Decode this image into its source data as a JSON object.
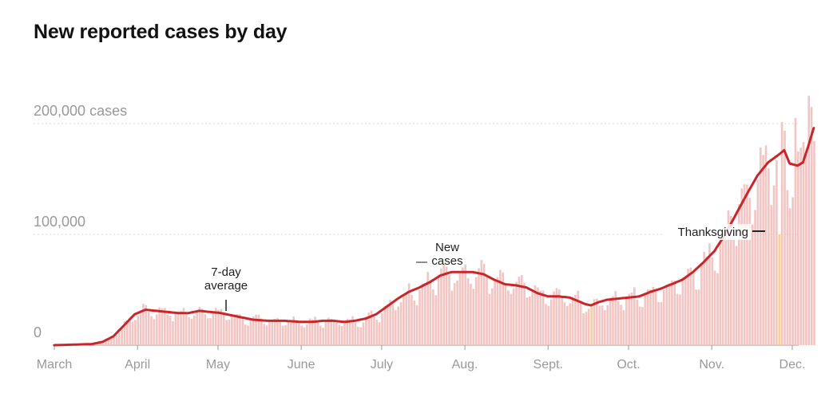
{
  "chart_data": {
    "type": "bar",
    "title": "New reported cases by day",
    "y_ticks": [
      {
        "value": 0,
        "label": "0"
      },
      {
        "value": 100000,
        "label": "100,000"
      },
      {
        "value": 200000,
        "label": "200,000 cases"
      }
    ],
    "ylim": [
      0,
      200000
    ],
    "x_ticks": [
      {
        "day": 0,
        "label": "March"
      },
      {
        "day": 31,
        "label": "April"
      },
      {
        "day": 61,
        "label": "May"
      },
      {
        "day": 92,
        "label": "June"
      },
      {
        "day": 122,
        "label": "July"
      },
      {
        "day": 153,
        "label": "Aug."
      },
      {
        "day": 184,
        "label": "Sept."
      },
      {
        "day": 214,
        "label": "Oct."
      },
      {
        "day": 245,
        "label": "Nov."
      },
      {
        "day": 275,
        "label": "Dec."
      }
    ],
    "series": [
      {
        "name": "New cases",
        "style": "daily bars",
        "color": "#f2c4c2"
      },
      {
        "name": "7-day average",
        "style": "line",
        "color": "#c9252b"
      }
    ],
    "avg_anchors": [
      [
        0,
        0
      ],
      [
        14,
        1000
      ],
      [
        18,
        3000
      ],
      [
        22,
        8000
      ],
      [
        26,
        18000
      ],
      [
        30,
        28000
      ],
      [
        34,
        32000
      ],
      [
        38,
        31000
      ],
      [
        42,
        30000
      ],
      [
        46,
        29000
      ],
      [
        50,
        29000
      ],
      [
        54,
        31000
      ],
      [
        58,
        30000
      ],
      [
        62,
        29000
      ],
      [
        66,
        27000
      ],
      [
        70,
        25000
      ],
      [
        74,
        23000
      ],
      [
        80,
        22000
      ],
      [
        86,
        22000
      ],
      [
        92,
        21000
      ],
      [
        96,
        21000
      ],
      [
        100,
        22000
      ],
      [
        104,
        22000
      ],
      [
        108,
        21000
      ],
      [
        112,
        22000
      ],
      [
        116,
        24000
      ],
      [
        120,
        28000
      ],
      [
        124,
        35000
      ],
      [
        128,
        42000
      ],
      [
        132,
        48000
      ],
      [
        136,
        52000
      ],
      [
        140,
        57000
      ],
      [
        144,
        63000
      ],
      [
        148,
        66000
      ],
      [
        152,
        66000
      ],
      [
        156,
        66000
      ],
      [
        160,
        64000
      ],
      [
        164,
        59000
      ],
      [
        168,
        55000
      ],
      [
        172,
        54000
      ],
      [
        176,
        52000
      ],
      [
        180,
        47000
      ],
      [
        184,
        44000
      ],
      [
        188,
        44000
      ],
      [
        192,
        43000
      ],
      [
        196,
        39000
      ],
      [
        198,
        37000
      ],
      [
        200,
        36000
      ],
      [
        203,
        39000
      ],
      [
        206,
        41000
      ],
      [
        210,
        42000
      ],
      [
        214,
        43000
      ],
      [
        218,
        44000
      ],
      [
        222,
        48000
      ],
      [
        226,
        51000
      ],
      [
        230,
        55000
      ],
      [
        234,
        59000
      ],
      [
        238,
        66000
      ],
      [
        242,
        75000
      ],
      [
        246,
        85000
      ],
      [
        250,
        100000
      ],
      [
        254,
        118000
      ],
      [
        258,
        136000
      ],
      [
        262,
        153000
      ],
      [
        266,
        165000
      ],
      [
        270,
        172000
      ],
      [
        272,
        176000
      ],
      [
        274,
        164000
      ],
      [
        277,
        162000
      ],
      [
        279,
        165000
      ],
      [
        281,
        180000
      ],
      [
        283,
        196000
      ]
    ],
    "annotations": [
      {
        "text": [
          "7-day",
          "average"
        ],
        "day": 64
      },
      {
        "text": [
          "New",
          "cases"
        ],
        "day": 148
      },
      {
        "text": [
          "Thanksgiving"
        ],
        "day": 271
      }
    ]
  }
}
